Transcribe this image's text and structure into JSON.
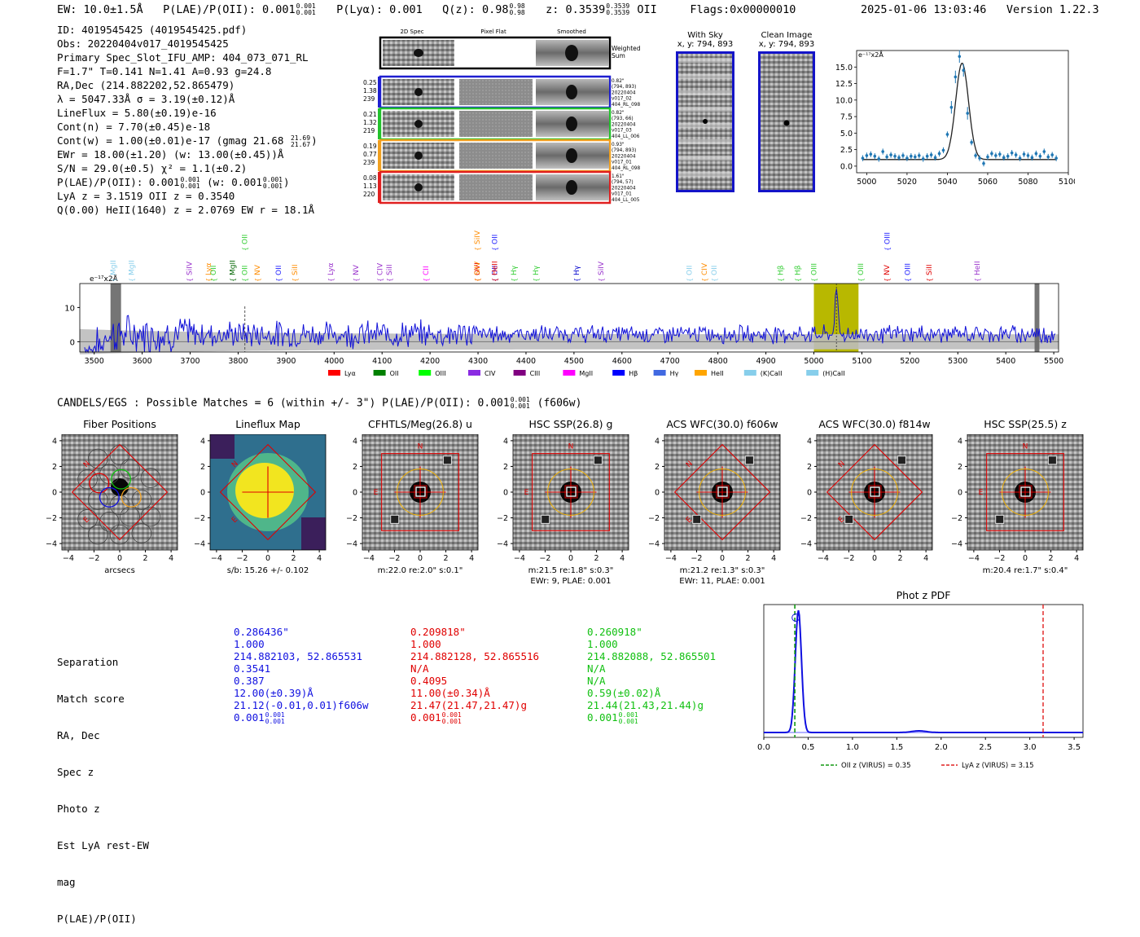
{
  "header": {
    "ew": "EW: 10.0±1.5Å",
    "plae_label": "P(LAE)/P(OII): 0.001",
    "plae_up": "0.001",
    "plae_lo": "0.001",
    "plya": "P(Lyα): 0.001",
    "qz_label": "Q(z): 0.98",
    "qz_up": "0.98",
    "qz_lo": "0.98",
    "z_label": "z: 0.3539",
    "z_up": "0.3539",
    "z_lo": "0.3539",
    "z_line": "OII",
    "flags": "Flags:0x00000010",
    "timestamp": "2025-01-06 13:03:46",
    "version": "Version 1.22.3"
  },
  "info": {
    "id": "ID: 4019545425 (4019545425.pdf)",
    "obs": "Obs: 20220404v017_4019545425",
    "primary": "Primary Spec_Slot_IFU_AMP: 404_073_071_RL",
    "params": "F=1.7\"  T=0.141  N=1.41  A=0.93  g=24.8",
    "radec": "RA,Dec (214.882202,52.865479)",
    "lambda": "λ = 5047.33Å  σ = 3.19(±0.12)Å",
    "lineflux": "LineFlux = 5.80(±0.19)e-16",
    "contn": "Cont(n) = 7.70(±0.45)e-18",
    "contw": "Cont(w) = 1.00(±0.01)e-17 (gmag 21.68",
    "contw_up": "21.69",
    "contw_lo": "21.67",
    "contw_end": ")",
    "ewr": "EWr = 18.00(±1.20) (w: 13.00(±0.45))Å",
    "sn": "S/N = 29.0(±0.5)  χ² = 1.1(±0.2)",
    "plae": "P(LAE)/P(OII): 0.001",
    "plae_up": "0.001",
    "plae_lo": "0.001",
    "plae_w": "(w: 0.001",
    "plae_w_up": "0.001",
    "plae_w_lo": "0.001",
    "plae_w_end": ")",
    "lya": "LyA z = 3.1519   OII z = 0.3540",
    "q": "Q(0.00) HeII(1640) z = 2.0769   EW r = 18.1Å"
  },
  "cutouts": {
    "col_titles": [
      "2D Spec",
      "Pixel Flat",
      "Smoothed"
    ],
    "weighted": "Weighted Sum",
    "rows": [
      {
        "nums": [
          "0.25",
          "1.38",
          "239"
        ],
        "meta": [
          "0.82\"",
          "(794, 893)",
          "20220404",
          "v017_02",
          "404_RL_098"
        ],
        "color": "#1f1fd0"
      },
      {
        "nums": [
          "0.21",
          "1.32",
          "219"
        ],
        "meta": [
          "0.82\"",
          "(793, 66)",
          "20220404",
          "v017_03",
          "404_LL_006"
        ],
        "color": "#22c22c"
      },
      {
        "nums": [
          "0.19",
          "0.77",
          "239"
        ],
        "meta": [
          "0.93\"",
          "(794, 893)",
          "20220404",
          "v017_01",
          "404_RL_098"
        ],
        "color": "#f0a020"
      },
      {
        "nums": [
          "0.08",
          "1.13",
          "220"
        ],
        "meta": [
          "1.61\"",
          "(794, 57)",
          "20220404",
          "v017_01",
          "404_LL_005"
        ],
        "color": "#e02020"
      }
    ]
  },
  "sky": {
    "title1": "With Sky",
    "coord1": "x, y: 794, 893",
    "title2": "Clean Image",
    "coord2": "x, y: 794, 893"
  },
  "zoom_chart": {
    "ylabel_unit": "e⁻¹⁷x2Å"
  },
  "colors": {
    "blue": "#1010e0",
    "red": "#e00000",
    "green": "#10c010",
    "olive": "#b8b800",
    "steel": "#1f77b4"
  },
  "candels": {
    "text": "CANDELS/EGS : Possible Matches = 6 (within +/- 3\")  P(LAE)/P(OII): 0.001",
    "up": "0.001",
    "lo": "0.001",
    "end": "(f606w)"
  },
  "panels": [
    {
      "title": "Fiber Positions",
      "xlabel": "arcsecs",
      "cap1": "",
      "cap2": ""
    },
    {
      "title": "Lineflux Map",
      "xlabel": "s/b: 15.26 +/- 0.102",
      "cap1": "",
      "cap2": ""
    },
    {
      "title": "CFHTLS/Meg(26.8) u",
      "xlabel": "m:22.0  re:2.0\"  s:0.1\"",
      "cap2": ""
    },
    {
      "title": "HSC SSP(26.8) g",
      "xlabel": "m:21.5  re:1.8\"  s:0.3\"",
      "cap2": "EWr: 9, PLAE: 0.001"
    },
    {
      "title": "ACS WFC(30.0) f606w",
      "xlabel": "m:21.2  re:1.3\"  s:0.3\"",
      "cap2": "EWr: 11, PLAE: 0.001"
    },
    {
      "title": "ACS WFC(30.0) f814w",
      "xlabel": "",
      "cap2": ""
    },
    {
      "title": "HSC SSP(25.5) z",
      "xlabel": "m:20.4  re:1.7\"  s:0.4\"",
      "cap2": ""
    }
  ],
  "panel_letters": {
    "n": "N",
    "e": "E"
  },
  "table": {
    "labels": [
      "Separation",
      "Match score",
      "RA, Dec",
      "Spec z",
      "Photo z",
      "Est LyA rest-EW",
      "mag",
      "P(LAE)/P(OII)"
    ],
    "columns": [
      {
        "color": "#1010e0",
        "values": [
          "0.286436\"",
          "1.000",
          "214.882103, 52.865531",
          "0.3541",
          "0.387",
          "12.00(±0.39)Å",
          "21.12(-0.01,0.01)f606w",
          "0.001"
        ],
        "up": "0.001",
        "lo": "0.001"
      },
      {
        "color": "#e00000",
        "values": [
          "0.209818\"",
          "1.000",
          "214.882128, 52.865516",
          "N/A",
          "0.4095",
          "11.00(±0.34)Å",
          "21.47(21.47,21.47)g",
          "0.001"
        ],
        "up": "0.001",
        "lo": "0.001"
      },
      {
        "color": "#10c010",
        "values": [
          "0.260918\"",
          "1.000",
          "214.882088, 52.865501",
          "N/A",
          "N/A",
          "0.59(±0.02)Å",
          "21.44(21.43,21.44)g",
          "0.001"
        ],
        "up": "0.001",
        "lo": "0.001"
      }
    ]
  },
  "chart_data": [
    {
      "type": "line",
      "title": "",
      "ylabel": "e⁻¹⁷x2Å",
      "xlim": [
        4995,
        5100
      ],
      "ylim": [
        -1,
        17.5
      ],
      "xticks": [
        5000,
        5020,
        5040,
        5060,
        5080,
        5100
      ],
      "yticks": [
        0.0,
        2.5,
        5.0,
        7.5,
        10.0,
        12.5,
        15.0
      ],
      "ytick_labels": [
        "0.0",
        "2.5",
        "5.0",
        "7.5",
        "10.0",
        "12.5",
        "15.0"
      ],
      "fit_center": 5047.3,
      "fit_sigma": 3.19,
      "fit_amplitude": 14.6,
      "fit_continuum": 1.0,
      "points": {
        "x": [
          4998,
          5000,
          5002,
          5004,
          5006,
          5008,
          5010,
          5012,
          5014,
          5016,
          5018,
          5020,
          5022,
          5024,
          5026,
          5028,
          5030,
          5032,
          5034,
          5036,
          5038,
          5040,
          5042,
          5044,
          5046,
          5048,
          5050,
          5052,
          5054,
          5056,
          5058,
          5060,
          5062,
          5064,
          5066,
          5068,
          5070,
          5072,
          5074,
          5076,
          5078,
          5080,
          5082,
          5084,
          5086,
          5088,
          5090,
          5092,
          5094
        ],
        "y": [
          1.2,
          1.6,
          1.8,
          1.5,
          1.1,
          2.2,
          1.4,
          1.7,
          1.5,
          1.3,
          1.6,
          1.2,
          1.5,
          1.4,
          1.6,
          1.1,
          1.5,
          1.7,
          1.3,
          1.9,
          2.4,
          4.8,
          8.9,
          13.5,
          16.6,
          14.5,
          8.0,
          3.6,
          1.6,
          1.2,
          0.4,
          1.4,
          1.9,
          1.6,
          1.8,
          1.3,
          1.5,
          2.0,
          1.7,
          1.2,
          1.8,
          1.6,
          1.3,
          1.9,
          1.5,
          2.2,
          1.4,
          1.7,
          1.2
        ]
      }
    },
    {
      "type": "line",
      "title": "",
      "ylabel": "e⁻¹⁷x2Å",
      "xlim": [
        3470,
        5510
      ],
      "ylim": [
        -3,
        17
      ],
      "xticks": [
        3500,
        3600,
        3700,
        3800,
        3900,
        4000,
        4100,
        4200,
        4300,
        4400,
        4500,
        4600,
        4700,
        4800,
        4900,
        5000,
        5100,
        5200,
        5300,
        5400,
        5500
      ],
      "yticks": [
        0,
        10
      ],
      "highlight_band": [
        5000,
        5093
      ],
      "emission_peak": {
        "x": 5047,
        "y": 12
      },
      "dashed_line": 3814,
      "masked": [
        [
          3534,
          3556
        ],
        [
          5460,
          5470
        ]
      ],
      "line_labels": [
        {
          "name": "MgII",
          "x": 3540,
          "color": "#87ceeb"
        },
        {
          "name": "MgII",
          "x": 3578,
          "color": "#87ceeb"
        },
        {
          "name": "SiIV",
          "x": 3698,
          "color": "#9932cc"
        },
        {
          "name": "Lyα",
          "x": 3738,
          "color": "#ff8c00"
        },
        {
          "name": "OII",
          "x": 3748,
          "color": "#32cd32"
        },
        {
          "name": "MgII",
          "x": 3788,
          "color": "#006400"
        },
        {
          "name": "OII",
          "x": 3814,
          "color": "#32cd32"
        },
        {
          "name": "NV",
          "x": 3840,
          "color": "#ff8c00"
        },
        {
          "name": "OII",
          "x": 3884,
          "color": "#2020ff"
        },
        {
          "name": "SiII",
          "x": 3918,
          "color": "#ff8c00"
        },
        {
          "name": "Lyα",
          "x": 3993,
          "color": "#9932cc"
        },
        {
          "name": "NV",
          "x": 4045,
          "color": "#9932cc"
        },
        {
          "name": "CIV",
          "x": 4095,
          "color": "#9932cc"
        },
        {
          "name": "SiII",
          "x": 4115,
          "color": "#9932cc"
        },
        {
          "name": "CII",
          "x": 4191,
          "color": "#ff00ff"
        },
        {
          "name": "OVI",
          "x": 4298,
          "color": "#e00000"
        },
        {
          "name": "SiIV",
          "x": 4298,
          "color": "#ff8c00"
        },
        {
          "name": "OII",
          "x": 4335,
          "color": "#2020ff"
        },
        {
          "name": "HeII",
          "x": 4335,
          "color": "#e00000"
        },
        {
          "name": "Hγ",
          "x": 4375,
          "color": "#32cd32"
        },
        {
          "name": "Hγ",
          "x": 4420,
          "color": "#32cd32"
        },
        {
          "name": "Hγ",
          "x": 4505,
          "color": "#0000cd"
        },
        {
          "name": "SiIV",
          "x": 4556,
          "color": "#9932cc"
        },
        {
          "name": "OII",
          "x": 4740,
          "color": "#87ceeb"
        },
        {
          "name": "CIV",
          "x": 4772,
          "color": "#ff8c00"
        },
        {
          "name": "OII",
          "x": 4792,
          "color": "#87ceeb"
        },
        {
          "name": "Hβ",
          "x": 4930,
          "color": "#32cd32"
        },
        {
          "name": "Hβ",
          "x": 4966,
          "color": "#32cd32"
        },
        {
          "name": "OIII",
          "x": 5000,
          "color": "#32cd32"
        },
        {
          "name": "OIII",
          "x": 5098,
          "color": "#32cd32"
        },
        {
          "name": "NV",
          "x": 5152,
          "color": "#e00000"
        },
        {
          "name": "OIII",
          "x": 5195,
          "color": "#2020ff"
        },
        {
          "name": "SiII",
          "x": 5240,
          "color": "#e00000"
        },
        {
          "name": "HeII",
          "x": 5340,
          "color": "#9932cc"
        },
        {
          "name": "OIII",
          "x": 5153,
          "color": "#2020ff",
          "tier": "top"
        },
        {
          "name": "OII",
          "x": 3814,
          "color": "#32cd32",
          "tier": "top"
        },
        {
          "name": "SiIV",
          "x": 4298,
          "color": "#ff8c00",
          "tier": "top"
        },
        {
          "name": "OII",
          "x": 4335,
          "color": "#2020ff",
          "tier": "top"
        }
      ],
      "legend": [
        {
          "name": "Lyα",
          "color": "#ff0000"
        },
        {
          "name": "OII",
          "color": "#008000"
        },
        {
          "name": "OIII",
          "color": "#00ff00"
        },
        {
          "name": "CIV",
          "color": "#8a2be2"
        },
        {
          "name": "CIII",
          "color": "#800080"
        },
        {
          "name": "MgII",
          "color": "#ff00ff"
        },
        {
          "name": "Hβ",
          "color": "#0000ff"
        },
        {
          "name": "Hγ",
          "color": "#4169e1"
        },
        {
          "name": "HeII",
          "color": "#ffa500"
        },
        {
          "name": "(K)CaII",
          "color": "#87ceeb"
        },
        {
          "name": "(H)CaII",
          "color": "#87ceeb"
        }
      ]
    },
    {
      "type": "line",
      "title": "Phot z PDF",
      "xlim": [
        0.0,
        3.6
      ],
      "xticks": [
        0.0,
        0.5,
        1.0,
        1.5,
        2.0,
        2.5,
        3.0,
        3.5
      ],
      "xtick_labels": [
        "0.0",
        "0.5",
        "1.0",
        "1.5",
        "2.0",
        "2.5",
        "3.0",
        "3.5"
      ],
      "peak_z": 0.39,
      "secondary_bump_z": 1.75,
      "oii_z": 0.35,
      "lya_z": 3.15,
      "legend": [
        "OII z (VIRUS) = 0.35",
        "LyA z (VIRUS) = 3.15"
      ]
    }
  ]
}
